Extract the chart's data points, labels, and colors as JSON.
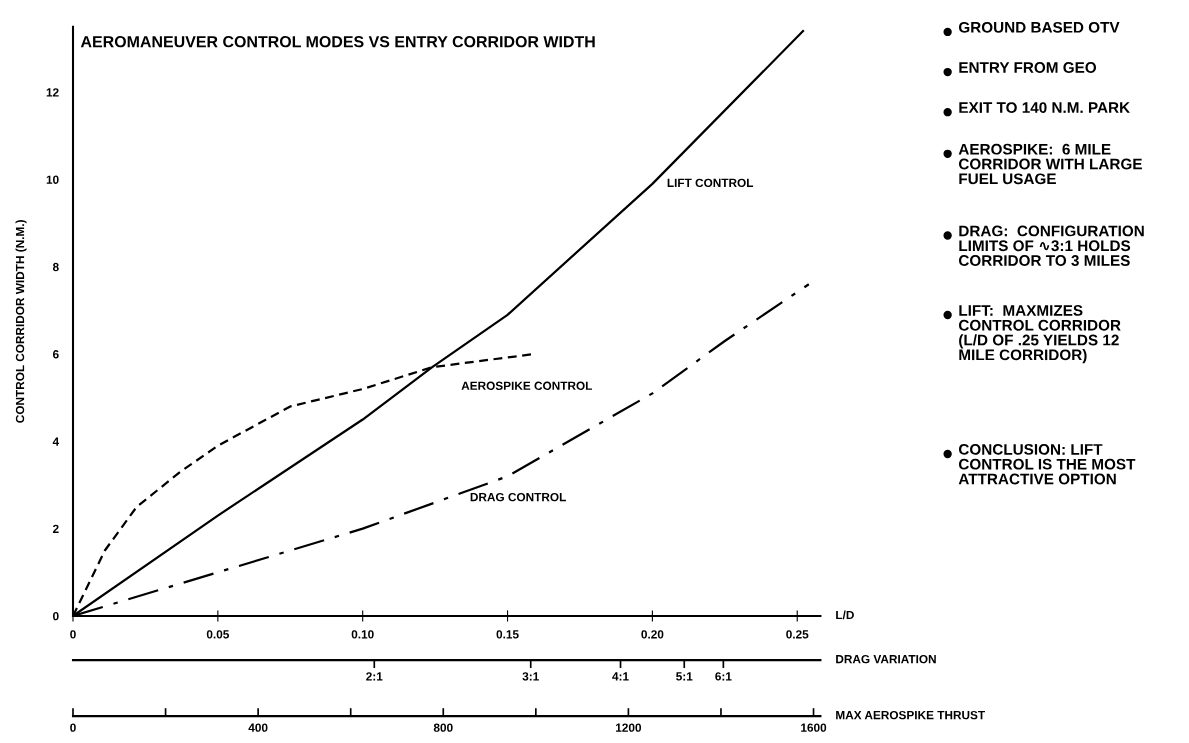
{
  "chart_data": {
    "type": "line",
    "title": "AEROMANEUVER CONTROL MODES VS ENTRY CORRIDOR WIDTH",
    "xlabel": "L/D",
    "ylabel": "CONTROL CORRIDOR WIDTH (N.M.)",
    "xlim": [
      0,
      0.258
    ],
    "ylim": [
      0,
      13.5
    ],
    "xticks": [
      0,
      {
        "value": 0.05,
        "label": "0.05"
      },
      {
        "value": 0.1,
        "label": "0.10"
      },
      {
        "value": 0.15,
        "label": "0.15"
      },
      {
        "value": 0.2,
        "label": "0.20"
      },
      {
        "value": 0.25,
        "label": "0.25"
      }
    ],
    "yticks": [
      0,
      2,
      4,
      6,
      8,
      10,
      12
    ],
    "grid": false,
    "legend": false,
    "marker": "none",
    "series": [
      {
        "name": "LIFT CONTROL",
        "color": "#000000",
        "line_style": "solid",
        "x": [
          0,
          0.05,
          0.1,
          0.124,
          0.15,
          0.2,
          0.252
        ],
        "values": [
          0,
          2.3,
          4.5,
          5.7,
          6.9,
          9.9,
          13.4
        ]
      },
      {
        "name": "AEROSPIKE CONTROL",
        "color": "#000000",
        "line_style": "dashed",
        "x": [
          0,
          0.011,
          0.022,
          0.037,
          0.05,
          0.075,
          0.1,
          0.124,
          0.159
        ],
        "values": [
          0,
          1.5,
          2.5,
          3.3,
          3.9,
          4.8,
          5.2,
          5.7,
          6.0
        ]
      },
      {
        "name": "DRAG CONTROL",
        "color": "#000000",
        "line_style": "dashdot",
        "x": [
          0,
          0.05,
          0.1,
          0.15,
          0.2,
          0.225,
          0.254
        ],
        "values": [
          0,
          1.0,
          2.0,
          3.2,
          5.1,
          6.3,
          7.6
        ]
      }
    ],
    "annotations": [
      "DRAG VARIATION",
      "2:1",
      "3:1",
      "4:1",
      "5:1",
      "6:1",
      "MAX AEROSPIKE THRUST",
      "0",
      "400",
      "800",
      "1200",
      "1600",
      "GROUND BASED OTV",
      "ENTRY FROM GEO",
      "EXIT TO 140 N.M. PARK",
      "AEROSPIKE:  6 MILE\nCORRIDOR WITH LARGE\nFUEL USAGE",
      "DRAG:  CONFIGURATION\nLIMITS OF ∿3:1 HOLDS\nCORRIDOR TO 3 MILES",
      "LIFT:  MAXMIZES\nCONTROL CORRIDOR\n(L/D OF .25 YIELDS 12\nMILE CORRIDOR)",
      "CONCLUSION: LIFT\nCONTROL IS THE MOST\nATTRACTIVE OPTION"
    ]
  }
}
